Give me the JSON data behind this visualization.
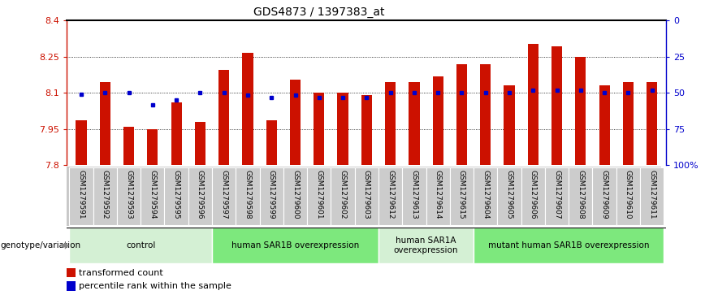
{
  "title": "GDS4873 / 1397383_at",
  "samples": [
    "GSM1279591",
    "GSM1279592",
    "GSM1279593",
    "GSM1279594",
    "GSM1279595",
    "GSM1279596",
    "GSM1279597",
    "GSM1279598",
    "GSM1279599",
    "GSM1279600",
    "GSM1279601",
    "GSM1279602",
    "GSM1279603",
    "GSM1279612",
    "GSM1279613",
    "GSM1279614",
    "GSM1279615",
    "GSM1279604",
    "GSM1279605",
    "GSM1279606",
    "GSM1279607",
    "GSM1279608",
    "GSM1279609",
    "GSM1279610",
    "GSM1279611"
  ],
  "bar_values": [
    7.985,
    8.145,
    7.96,
    7.95,
    8.06,
    7.98,
    8.195,
    8.265,
    7.985,
    8.155,
    8.1,
    8.1,
    8.09,
    8.145,
    8.145,
    8.17,
    8.22,
    8.22,
    8.13,
    8.305,
    8.295,
    8.25,
    8.13,
    8.145,
    8.145
  ],
  "blue_dot_values": [
    8.095,
    8.1,
    8.1,
    8.05,
    8.07,
    8.1,
    8.1,
    8.09,
    8.08,
    8.09,
    8.08,
    8.08,
    8.08,
    8.1,
    8.1,
    8.1,
    8.1,
    8.1,
    8.1,
    8.11,
    8.11,
    8.11,
    8.1,
    8.1,
    8.11
  ],
  "groups": [
    {
      "label": "control",
      "start": 0,
      "end": 5,
      "color": "#d4f0d4"
    },
    {
      "label": "human SAR1B overexpression",
      "start": 6,
      "end": 12,
      "color": "#7de87d"
    },
    {
      "label": "human SAR1A\noverexpression",
      "start": 13,
      "end": 16,
      "color": "#d4f0d4"
    },
    {
      "label": "mutant human SAR1B overexpression",
      "start": 17,
      "end": 24,
      "color": "#7de87d"
    }
  ],
  "ylim": [
    7.8,
    8.4
  ],
  "y_left_ticks": [
    7.8,
    7.95,
    8.1,
    8.25,
    8.4
  ],
  "y_right_ticks": [
    0,
    25,
    50,
    75,
    100
  ],
  "bar_color": "#cc1100",
  "dot_color": "#0000cc",
  "bar_width": 0.45,
  "baseline": 7.8,
  "tick_label_bg": "#cccccc",
  "tick_label_fontsize": 6.5,
  "group_fontsize": 7.5,
  "legend_fontsize": 8
}
